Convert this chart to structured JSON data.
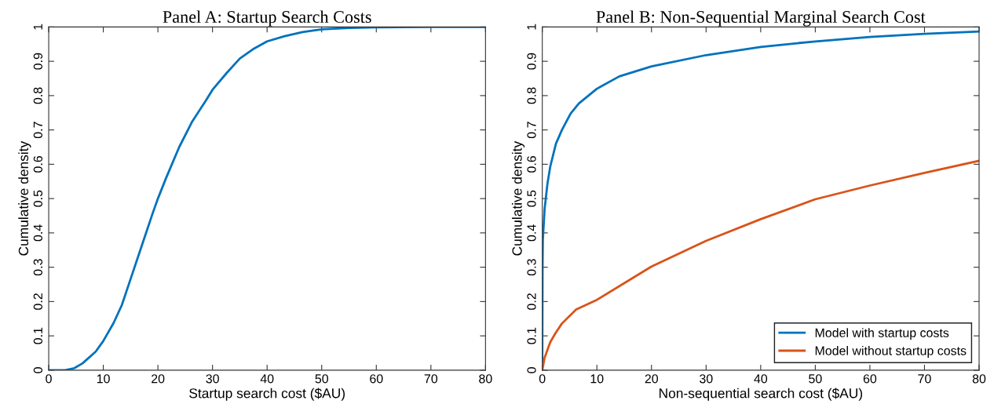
{
  "chart_data": [
    {
      "type": "line",
      "title": "Panel A: Startup Search Costs",
      "xlabel": "Startup search cost ($AU)",
      "ylabel": "Cumulative density",
      "xlim": [
        0,
        80
      ],
      "ylim": [
        0,
        1
      ],
      "xticks": [
        0,
        10,
        20,
        30,
        40,
        50,
        60,
        70,
        80
      ],
      "yticks": [
        0,
        0.1,
        0.2,
        0.3,
        0.4,
        0.5,
        0.6,
        0.7,
        0.8,
        0.9,
        1
      ],
      "grid": false,
      "legend": false,
      "series": [
        {
          "color": "#0072bd",
          "x": [
            0,
            3,
            4.7,
            6.2,
            8.6,
            10,
            11.9,
            13.4,
            15.3,
            17.2,
            19.1,
            20,
            21.5,
            23.9,
            26.3,
            28.8,
            30,
            32.6,
            35,
            37.4,
            40,
            43.2,
            46.5,
            50,
            55,
            60,
            70,
            80
          ],
          "values": [
            0,
            0,
            0.006,
            0.02,
            0.054,
            0.085,
            0.138,
            0.19,
            0.28,
            0.37,
            0.46,
            0.5,
            0.56,
            0.65,
            0.725,
            0.786,
            0.817,
            0.866,
            0.908,
            0.935,
            0.958,
            0.973,
            0.985,
            0.993,
            0.997,
            0.999,
            1,
            1
          ]
        }
      ]
    },
    {
      "type": "line",
      "title": "Panel B: Non-Sequential Marginal Search Cost",
      "xlabel": "Non-sequential search cost ($AU)",
      "ylabel": "Cumulative density",
      "xlim": [
        0,
        80
      ],
      "ylim": [
        0,
        1
      ],
      "xticks": [
        0,
        10,
        20,
        30,
        40,
        50,
        60,
        70,
        80
      ],
      "yticks": [
        0,
        0.1,
        0.2,
        0.3,
        0.4,
        0.5,
        0.6,
        0.7,
        0.8,
        0.9,
        1
      ],
      "grid": false,
      "legend": "bottom right",
      "series": [
        {
          "name": "Model with startup costs",
          "color": "#0072bd",
          "x": [
            0,
            0.05,
            0.1,
            0.42,
            0.95,
            1.47,
            2.5,
            3.6,
            5.2,
            6.7,
            10,
            14.1,
            20,
            30,
            40,
            50,
            60,
            70,
            80
          ],
          "values": [
            0,
            0.3,
            0.38,
            0.469,
            0.544,
            0.594,
            0.66,
            0.7,
            0.748,
            0.777,
            0.82,
            0.856,
            0.885,
            0.918,
            0.942,
            0.958,
            0.971,
            0.98,
            0.987
          ]
        },
        {
          "name": "Model without startup costs",
          "color": "#d95319",
          "x": [
            0,
            0.42,
            1.47,
            2.5,
            3.6,
            6.2,
            10,
            20,
            30,
            40,
            50,
            60,
            70,
            80
          ],
          "values": [
            0,
            0.036,
            0.082,
            0.11,
            0.136,
            0.177,
            0.205,
            0.302,
            0.377,
            0.44,
            0.498,
            0.538,
            0.575,
            0.61
          ]
        }
      ]
    }
  ]
}
